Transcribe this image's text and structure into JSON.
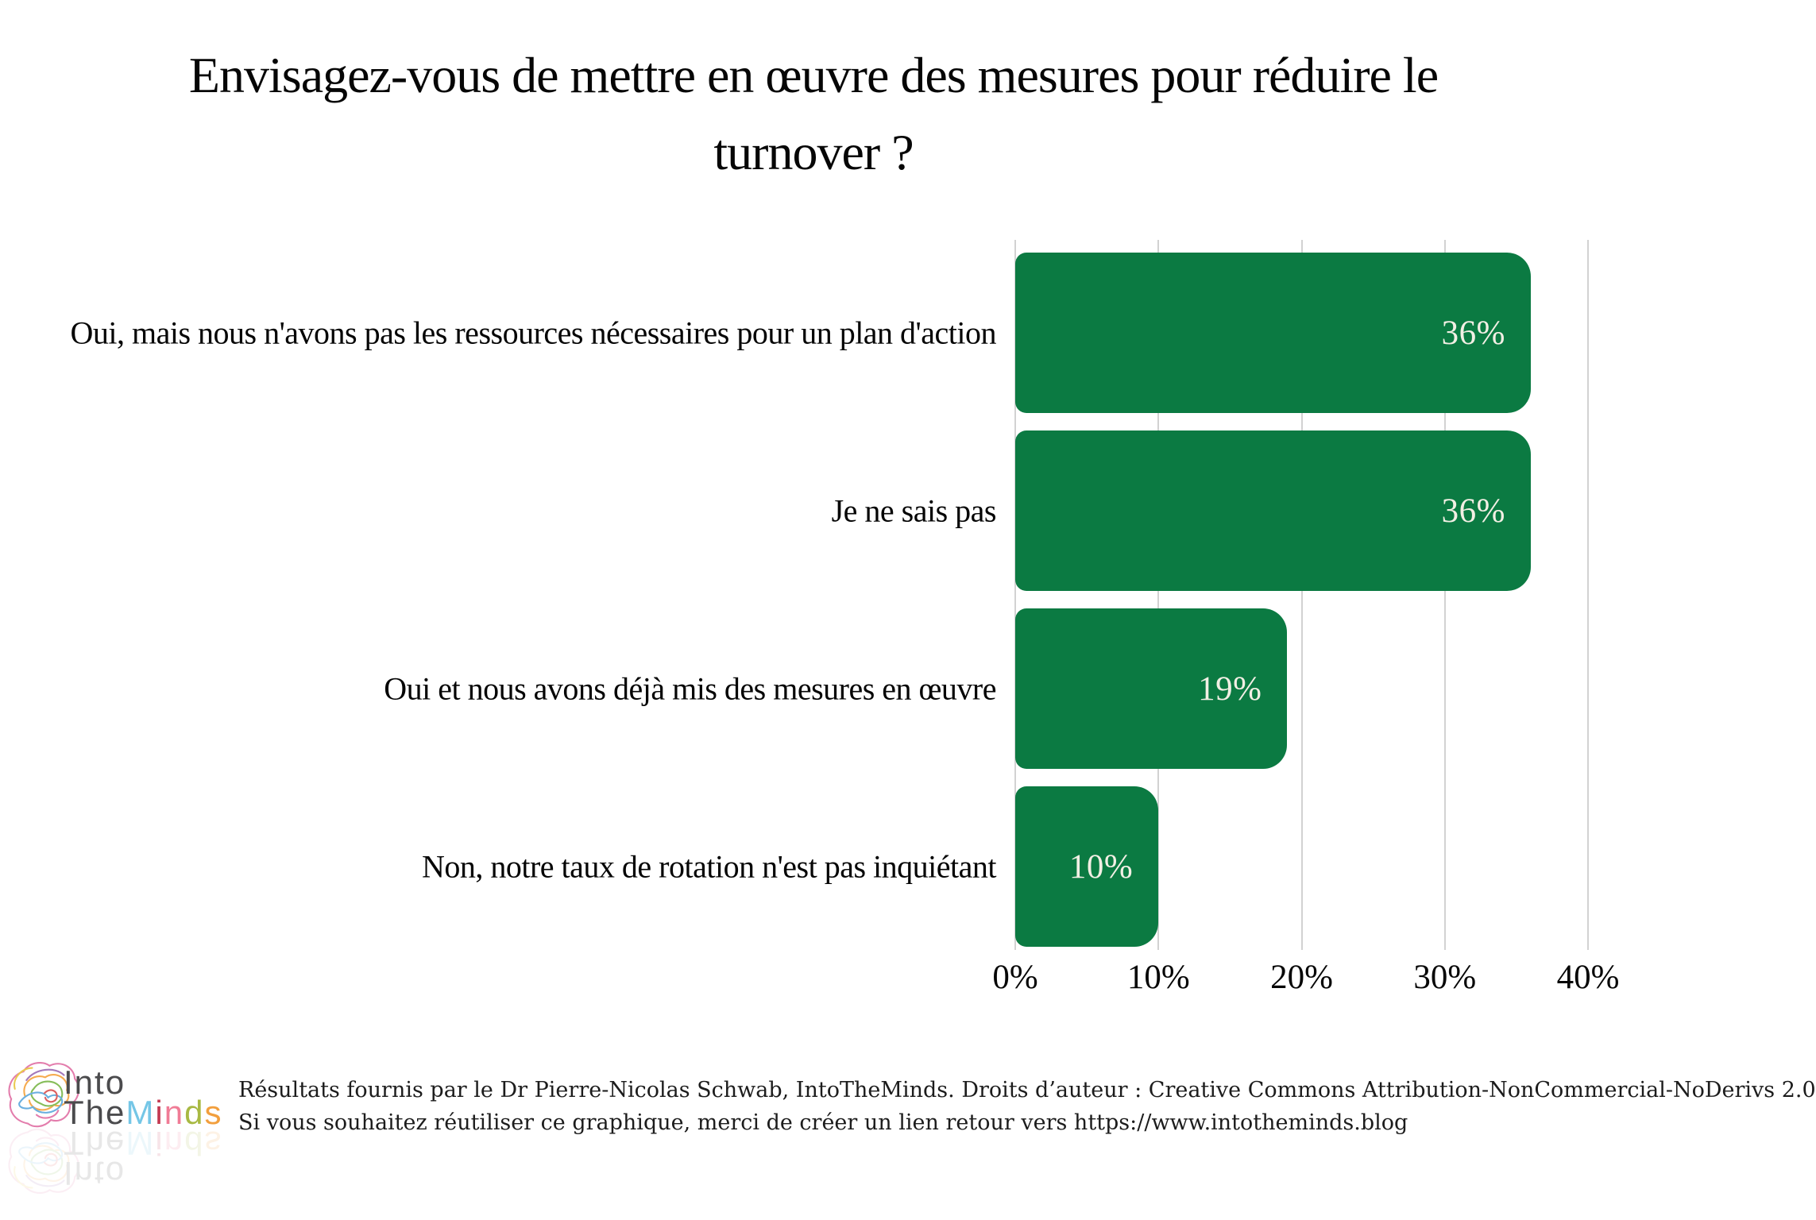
{
  "title": {
    "text": "Envisagez-vous de mettre en œuvre des mesures pour réduire le turnover ?",
    "lines": [
      "Envisagez-vous de mettre en œuvre des mesures pour réduire le",
      "turnover ?"
    ]
  },
  "chart_data": {
    "type": "bar",
    "orientation": "horizontal",
    "title": "Envisagez-vous de mettre en œuvre des mesures pour réduire le turnover ?",
    "categories": [
      "Oui, mais nous n'avons pas les ressources nécessaires pour un plan d'action",
      "Je ne sais pas",
      "Oui et nous avons déjà mis des mesures en œuvre",
      "Non, notre taux de rotation n'est pas inquiétant"
    ],
    "values": [
      36,
      36,
      19,
      10
    ],
    "value_labels": [
      "36%",
      "36%",
      "19%",
      "10%"
    ],
    "unit": "%",
    "xlim": [
      0,
      40
    ],
    "x_ticks": [
      0,
      10,
      20,
      30,
      40
    ],
    "x_tick_labels": [
      "0%",
      "10%",
      "20%",
      "30%",
      "40%"
    ],
    "grid": true,
    "legend": false,
    "bar_color": "#0B7A42",
    "value_label_color": "#F2EFE4",
    "gridline_color": "#D2D2D2"
  },
  "footer": {
    "credit_line1": "Résultats fournis par le Dr Pierre-Nicolas Schwab, IntoTheMinds. Droits d’auteur : Creative Commons Attribution-NonCommercial-NoDerivs 2.0",
    "credit_line2": "Si vous souhaitez réutiliser ce graphique, merci de créer un lien retour vers https://www.intotheminds.blog",
    "logo": {
      "word1": "Into",
      "word2": "The",
      "word3": "Minds",
      "text_color": "#4B4B4D",
      "minds_letters": [
        {
          "ch": "M",
          "color": "#74C6E6"
        },
        {
          "ch": "i",
          "color": "#C43A52"
        },
        {
          "ch": "n",
          "color": "#F07C96"
        },
        {
          "ch": "d",
          "color": "#A8B943"
        },
        {
          "ch": "s",
          "color": "#F29F3D"
        }
      ]
    }
  }
}
